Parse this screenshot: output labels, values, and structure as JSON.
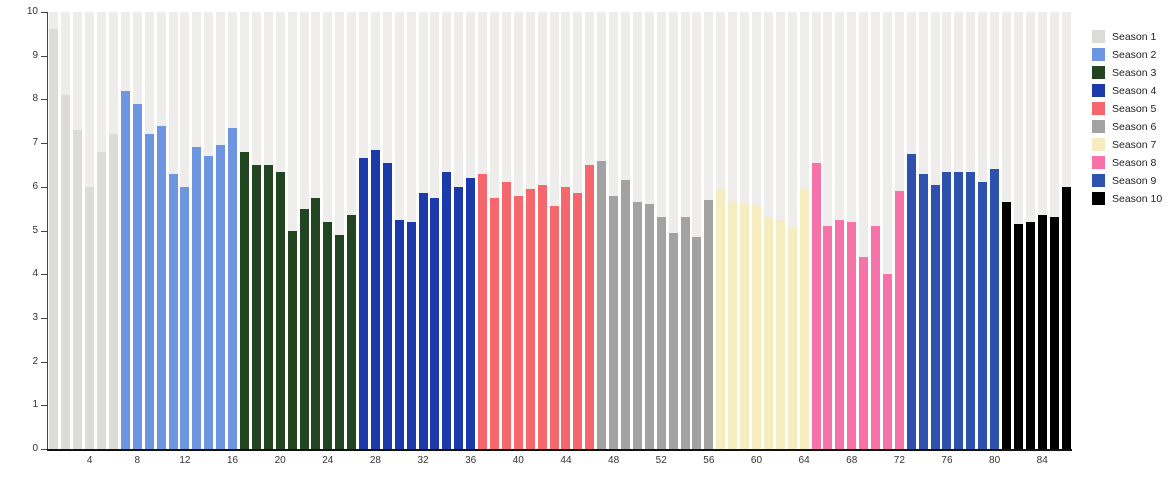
{
  "chart_data": {
    "type": "bar",
    "title": "",
    "xlabel": "",
    "ylabel": "",
    "ylim": [
      0,
      10
    ],
    "grid": false,
    "background_stripe_value": 10,
    "background_stripe_color": "#eeedeb",
    "axis_color": "#444444",
    "tick_label_color": "#333333",
    "y_ticks": [
      0,
      1,
      2,
      3,
      4,
      5,
      6,
      7,
      8,
      9,
      10
    ],
    "x_ticks": [
      4,
      8,
      12,
      16,
      20,
      24,
      28,
      32,
      36,
      40,
      44,
      48,
      52,
      56,
      60,
      64,
      68,
      72,
      76,
      80,
      84
    ],
    "x_unit": "episode-number",
    "total_episodes": 86,
    "legend_position": "right",
    "series": [
      {
        "name": "Season 1",
        "color": "#dbdbd9",
        "values": [
          9.6,
          8.1,
          7.3,
          6.0,
          6.8,
          7.2
        ]
      },
      {
        "name": "Season 2",
        "color": "#6d95e0",
        "values": [
          8.2,
          7.9,
          7.2,
          7.4,
          6.3,
          6.0,
          6.9,
          6.7,
          6.95,
          7.35
        ]
      },
      {
        "name": "Season 3",
        "color": "#234420",
        "values": [
          6.8,
          6.5,
          6.5,
          6.35,
          5.0,
          5.5,
          5.75,
          5.2,
          4.9,
          5.35
        ]
      },
      {
        "name": "Season 4",
        "color": "#1c3aaa",
        "values": [
          6.65,
          6.85,
          6.55,
          5.25,
          5.2,
          5.85,
          5.75,
          6.35,
          6.0,
          6.2
        ]
      },
      {
        "name": "Season 5",
        "color": "#f6666d",
        "values": [
          6.3,
          5.75,
          6.1,
          5.8,
          5.95,
          6.05,
          5.55,
          6.0,
          5.85,
          6.5
        ]
      },
      {
        "name": "Season 6",
        "color": "#a2a2a2",
        "values": [
          6.6,
          5.8,
          6.15,
          5.65,
          5.6,
          5.3,
          4.95,
          5.3,
          4.85,
          5.7
        ]
      },
      {
        "name": "Season 7",
        "color": "#f5ecc0",
        "values": [
          5.95,
          5.65,
          5.6,
          5.55,
          5.3,
          5.25,
          5.05,
          5.95
        ]
      },
      {
        "name": "Season 8",
        "color": "#f672a8",
        "values": [
          6.55,
          5.1,
          5.25,
          5.2,
          4.4,
          5.1,
          4.0,
          5.9
        ]
      },
      {
        "name": "Season 9",
        "color": "#2e51ad",
        "values": [
          6.75,
          6.3,
          6.05,
          6.35,
          6.35,
          6.35,
          6.1,
          6.4
        ]
      },
      {
        "name": "Season 10",
        "color": "#000000",
        "values": [
          5.65,
          5.15,
          5.2,
          5.35,
          5.3,
          6.0
        ]
      }
    ]
  }
}
